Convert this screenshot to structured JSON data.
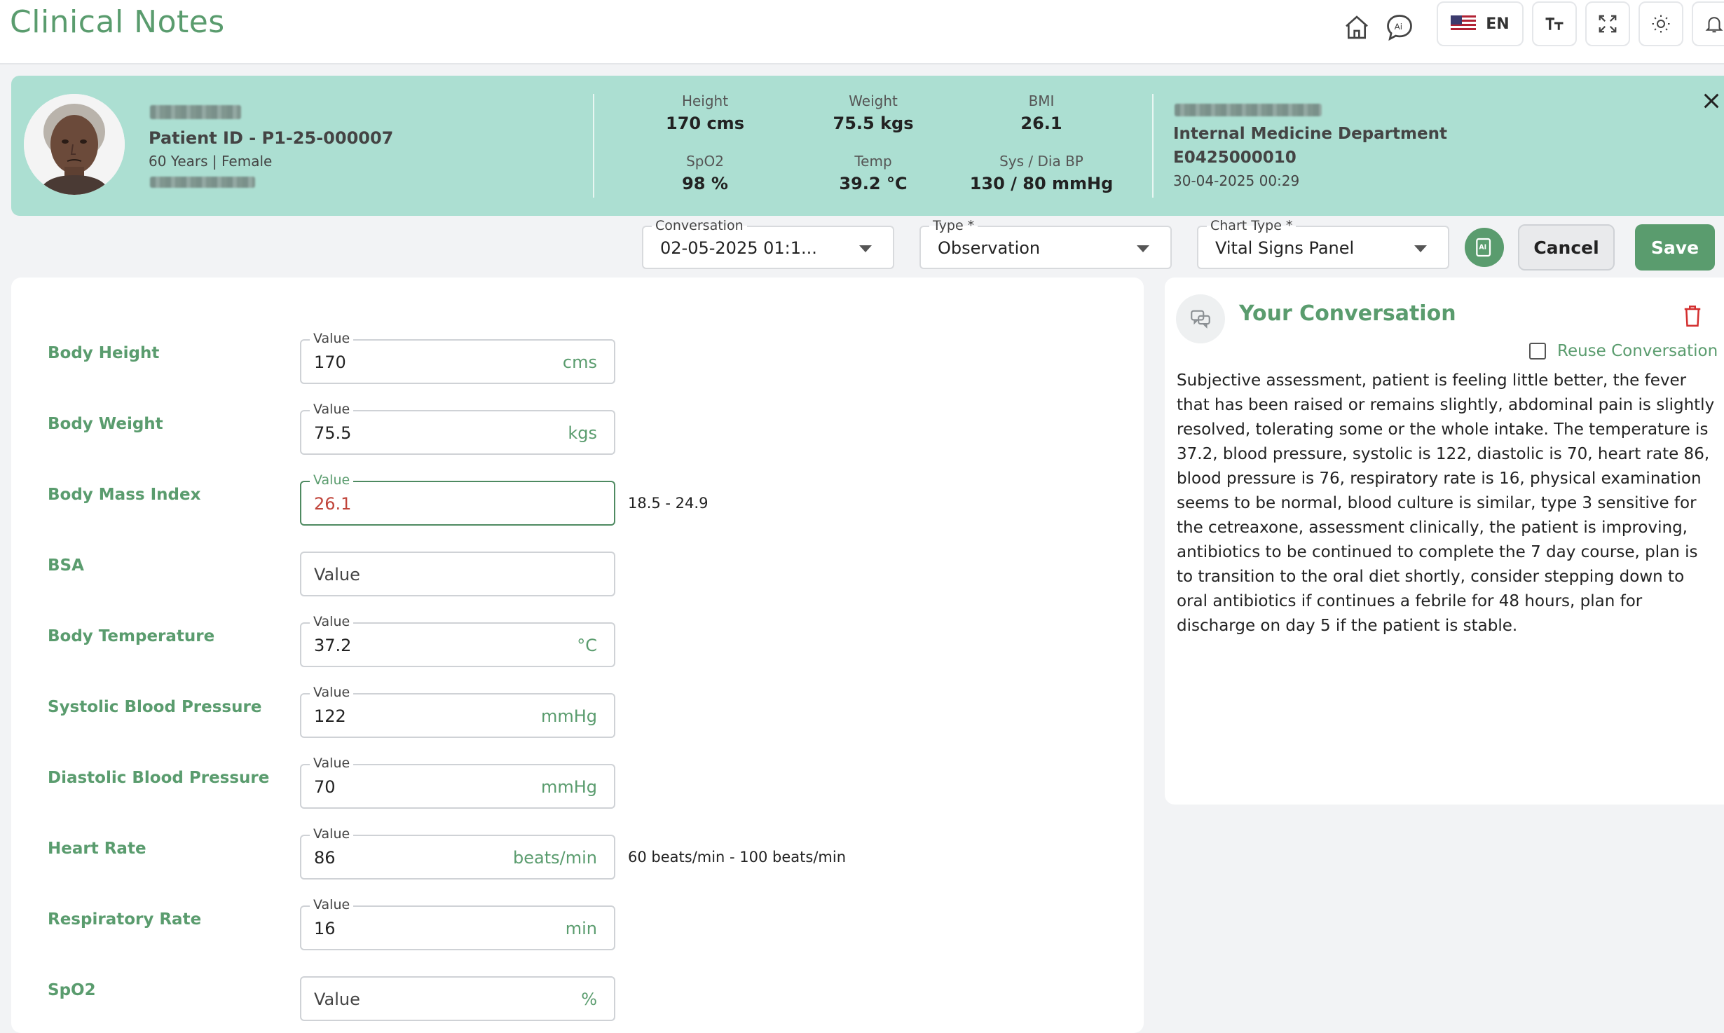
{
  "header": {
    "title": "Clinical Notes",
    "language_code": "EN",
    "icons": [
      "home-icon",
      "ai-chat-icon",
      "us-flag-icon",
      "font-size-icon",
      "fullscreen-icon",
      "theme-icon",
      "notification-icon"
    ]
  },
  "patient": {
    "patient_id": "Patient ID - P1-25-000007",
    "demographics": "60 Years | Female",
    "vitals": {
      "height": {
        "label": "Height",
        "value": "170 cms"
      },
      "weight": {
        "label": "Weight",
        "value": "75.5 kgs"
      },
      "bmi": {
        "label": "BMI",
        "value": "26.1"
      },
      "spo2": {
        "label": "SpO2",
        "value": "98 %"
      },
      "temp": {
        "label": "Temp",
        "value": "39.2 °C"
      },
      "bp": {
        "label": "Sys / Dia BP",
        "value": "130 / 80 mmHg"
      }
    },
    "department": "Internal Medicine Department",
    "encounter_id": "E0425000010",
    "encounter_date": "30-04-2025 00:29"
  },
  "toolbar": {
    "conversation_label": "Conversation",
    "conversation_value": "02-05-2025 01:1...",
    "type_label": "Type *",
    "type_value": "Observation",
    "chart_type_label": "Chart Type *",
    "chart_type_value": "Vital Signs Panel",
    "cancel_label": "Cancel",
    "save_label": "Save"
  },
  "form": {
    "value_label": "Value",
    "rows": [
      {
        "label": "Body Height",
        "value": "170",
        "unit": "cms",
        "range": ""
      },
      {
        "label": "Body Weight",
        "value": "75.5",
        "unit": "kgs",
        "range": ""
      },
      {
        "label": "Body Mass Index",
        "value": "26.1",
        "unit": "",
        "range": "18.5  - 24.9"
      },
      {
        "label": "BSA",
        "value": "",
        "placeholder": "Value",
        "unit": "",
        "range": ""
      },
      {
        "label": "Body Temperature",
        "value": "37.2",
        "unit": "°C",
        "range": ""
      },
      {
        "label": "Systolic Blood Pressure",
        "value": "122",
        "unit": "mmHg",
        "range": ""
      },
      {
        "label": "Diastolic Blood Pressure",
        "value": "70",
        "unit": "mmHg",
        "range": ""
      },
      {
        "label": "Heart Rate",
        "value": "86",
        "unit": "beats/min",
        "range": "60 beats/min - 100 beats/min"
      },
      {
        "label": "Respiratory Rate",
        "value": "16",
        "unit": "min",
        "range": ""
      },
      {
        "label": "SpO2",
        "value": "",
        "placeholder": "Value",
        "unit": "%",
        "range": ""
      }
    ]
  },
  "conversation": {
    "title": "Your Conversation",
    "reuse_label": "Reuse Conversation",
    "reuse_checked": false,
    "text": "Subjective assessment, patient is feeling little better, the fever that has been raised or remains slightly, abdominal pain is slightly resolved, tolerating some or the whole intake. The temperature is 37.2, blood pressure, systolic is 122, diastolic is 70, heart rate 86, blood pressure is 76, respiratory rate is 16, physical examination seems to be normal, blood culture is similar, type 3 sensitive for the cetreaxone, assessment clinically, the patient is improving, antibiotics to be continued to complete the 7 day course, plan is to transition to the oral diet shortly, consider stepping down to oral antibiotics if continues a febrile for 48 hours, plan for discharge on day 5 if the patient is stable."
  },
  "colors": {
    "brand_green": "#5a9c6e",
    "banner_mint": "#acdfd2",
    "out_of_range_red": "#c0443a",
    "delete_red": "#d32f2f"
  }
}
